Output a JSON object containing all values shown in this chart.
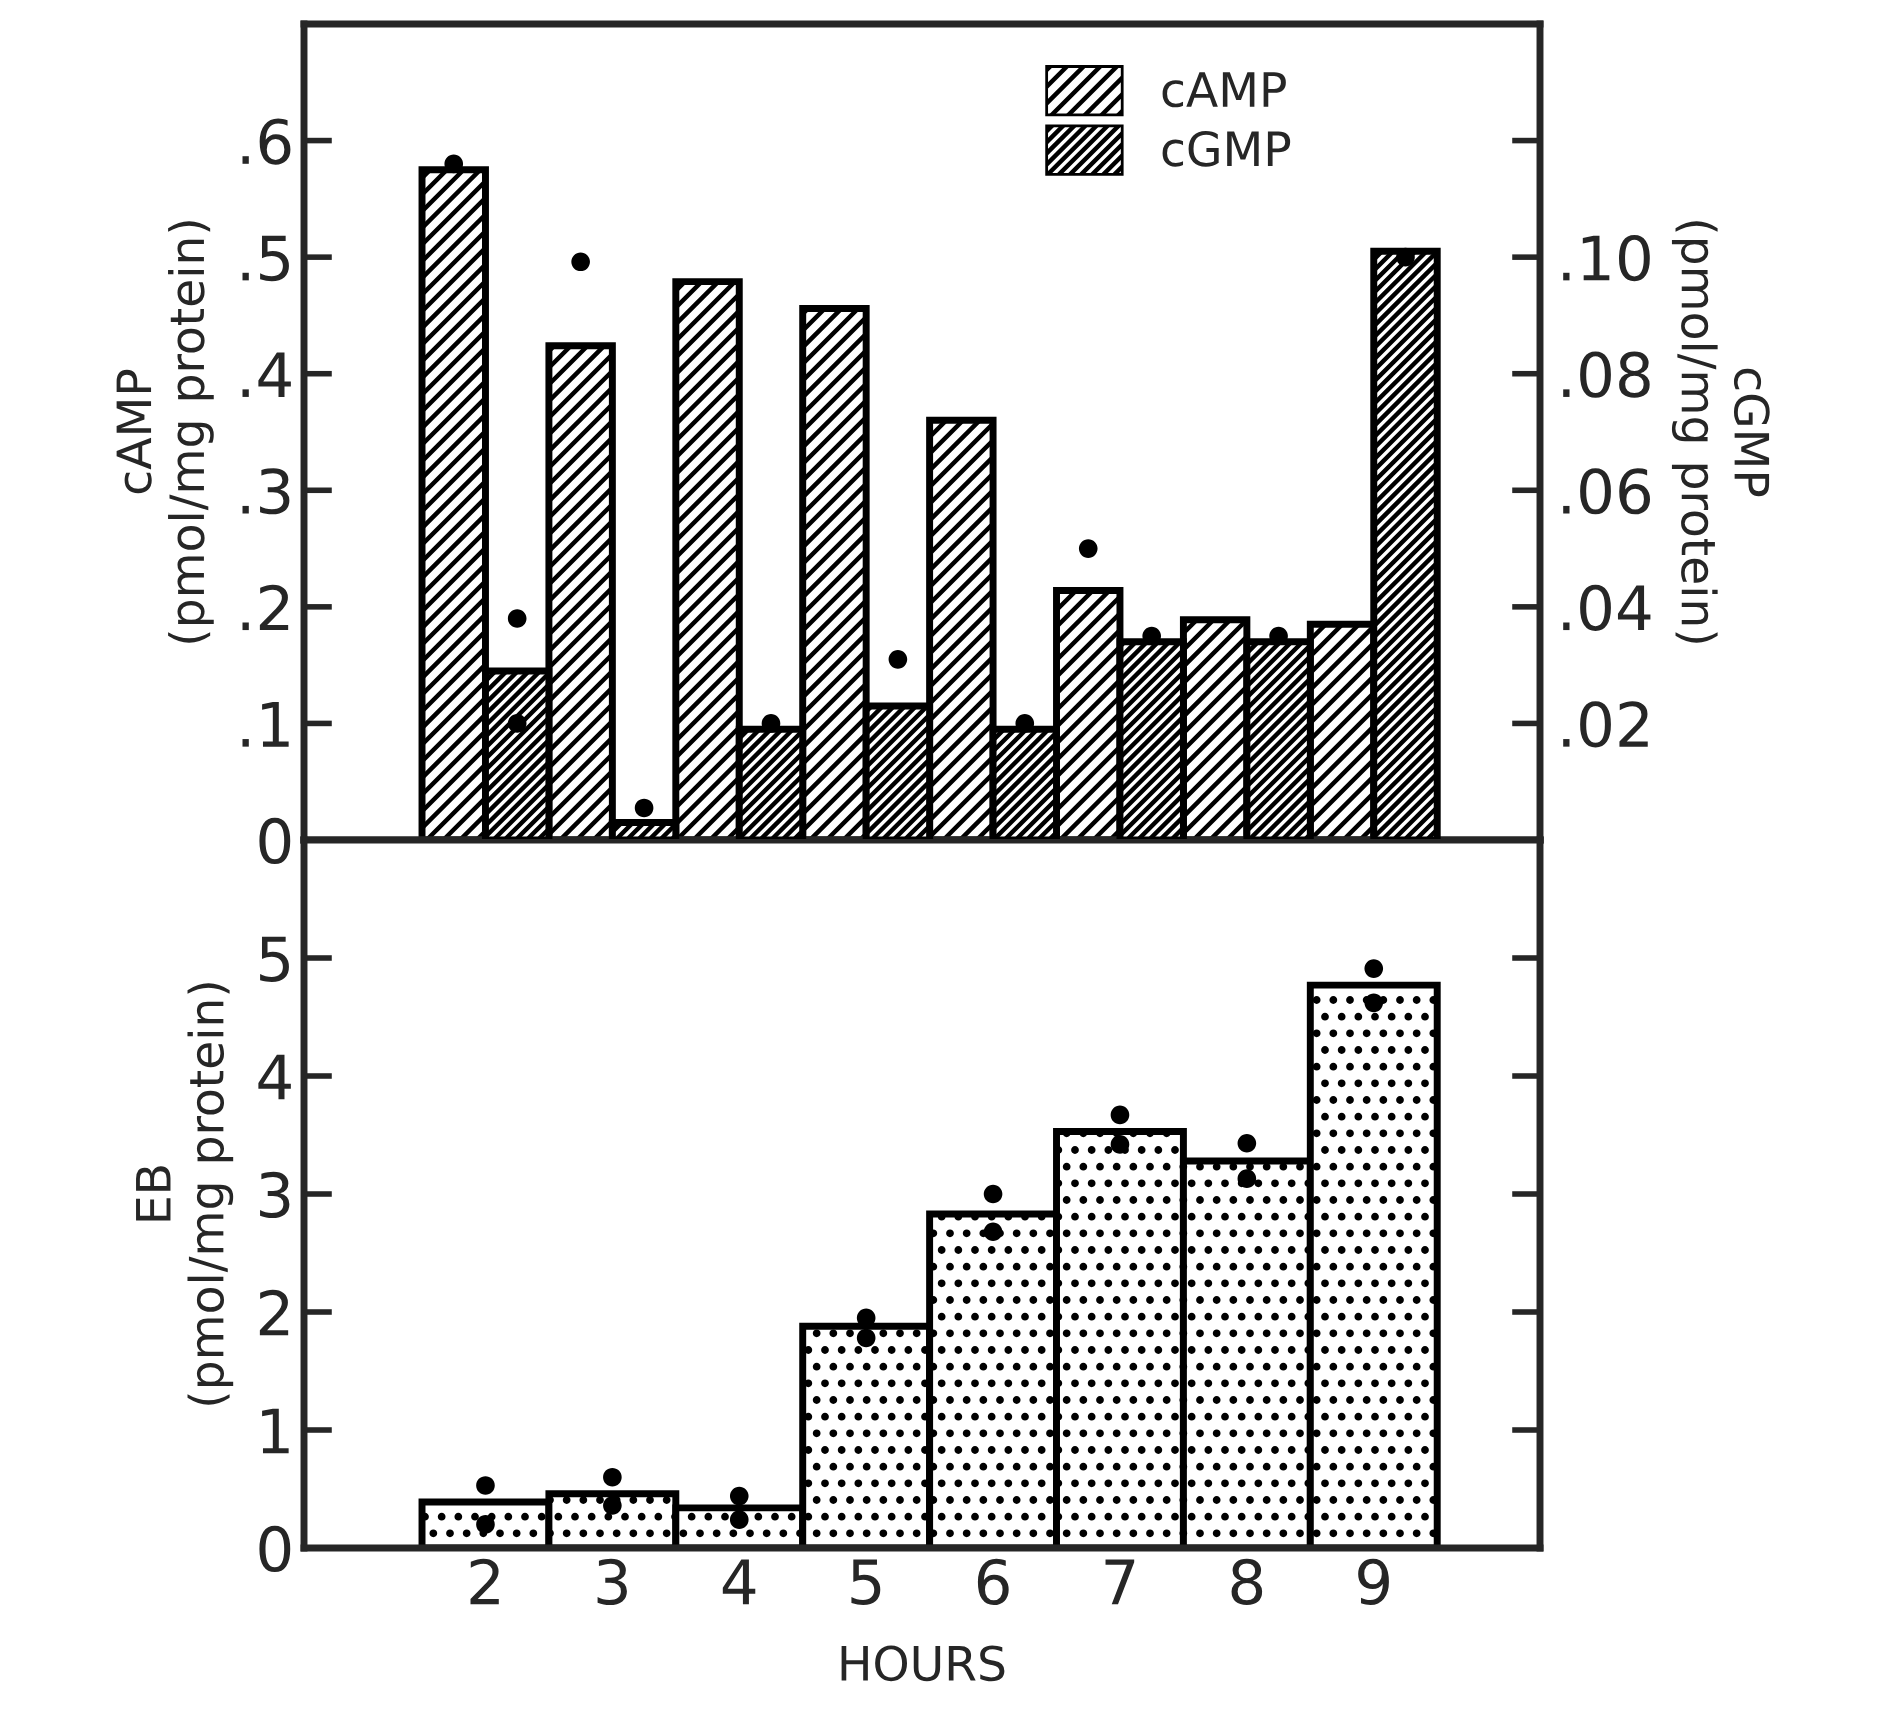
{
  "chart_data": [
    {
      "type": "bar",
      "categories": [
        "2",
        "3",
        "4",
        "5",
        "6",
        "7",
        "8",
        "9"
      ],
      "ylabel": "cAMP\n(pmol/mg protein)",
      "y2label": "cGMP\n(pmol/mg protein)",
      "ylim": [
        0,
        0.7
      ],
      "yticks": [
        0,
        {
          "value": 0.1,
          "label": ".1"
        },
        {
          "value": 0.2,
          "label": ".2"
        },
        {
          "value": 0.3,
          "label": ".3"
        },
        {
          "value": 0.4,
          "label": ".4"
        },
        {
          "value": 0.5,
          "label": ".5"
        },
        {
          "value": 0.6,
          "label": ".6"
        }
      ],
      "y2lim": [
        0,
        0.14
      ],
      "y2ticks": [
        {
          "value": 0.02,
          "label": ".02"
        },
        {
          "value": 0.04,
          "label": ".04"
        },
        {
          "value": 0.06,
          "label": ".06"
        },
        {
          "value": 0.08,
          "label": ".08"
        },
        {
          "value": 0.1,
          "label": ".10"
        },
        {
          "value": 0.12,
          "label": null
        }
      ],
      "tick_labels": "y",
      "legend": "top",
      "grid": false,
      "series": [
        {
          "name": "cAMP",
          "color": "#000000",
          "values": [
            0.575,
            0.424,
            0.479,
            0.456,
            0.36,
            0.214,
            0.189,
            0.185
          ]
        },
        {
          "name": "cGMP",
          "color": "#000000",
          "axis": "y2",
          "values": [
            0.029,
            0.003,
            0.019,
            0.023,
            0.019,
            0.034,
            0.034,
            0.101
          ]
        },
        {
          "type": "scatter",
          "color": "#000000",
          "x": [
            "2",
            "3",
            "7"
          ],
          "values": [
            0.58,
            0.496,
            0.25
          ]
        },
        {
          "type": "scatter",
          "color": "#000000",
          "axis": "y2",
          "x": [
            "2",
            "2",
            "3",
            "4",
            "5",
            "6",
            "7",
            "8",
            "9"
          ],
          "values": [
            0.038,
            0.02,
            0.0055,
            0.02,
            0.031,
            0.02,
            0.035,
            0.035,
            0.1
          ]
        }
      ]
    },
    {
      "type": "bar",
      "categories": [
        "2",
        "3",
        "4",
        "5",
        "6",
        "7",
        "8",
        "9"
      ],
      "ylabel": "EB\n(pmol/mg protein)",
      "xlabel": "HOURS",
      "ylim": [
        0,
        6
      ],
      "yticks": [
        0,
        1,
        2,
        3,
        4,
        5
      ],
      "grid": false,
      "legend": false,
      "series": [
        {
          "color": "#000000",
          "values": [
            0.39,
            0.46,
            0.34,
            1.88,
            2.83,
            3.53,
            3.28,
            4.77
          ]
        },
        {
          "type": "scatter",
          "color": "#000000",
          "x": [
            "2",
            "2",
            "3",
            "3",
            "4",
            "4",
            "5",
            "5",
            "6",
            "6",
            "7",
            "7",
            "8",
            "8",
            "9",
            "9"
          ],
          "values": [
            0.53,
            0.2,
            0.6,
            0.36,
            0.44,
            0.24,
            1.95,
            1.78,
            3.0,
            2.68,
            3.67,
            3.42,
            3.43,
            3.13,
            4.91,
            4.62
          ]
        }
      ]
    }
  ]
}
